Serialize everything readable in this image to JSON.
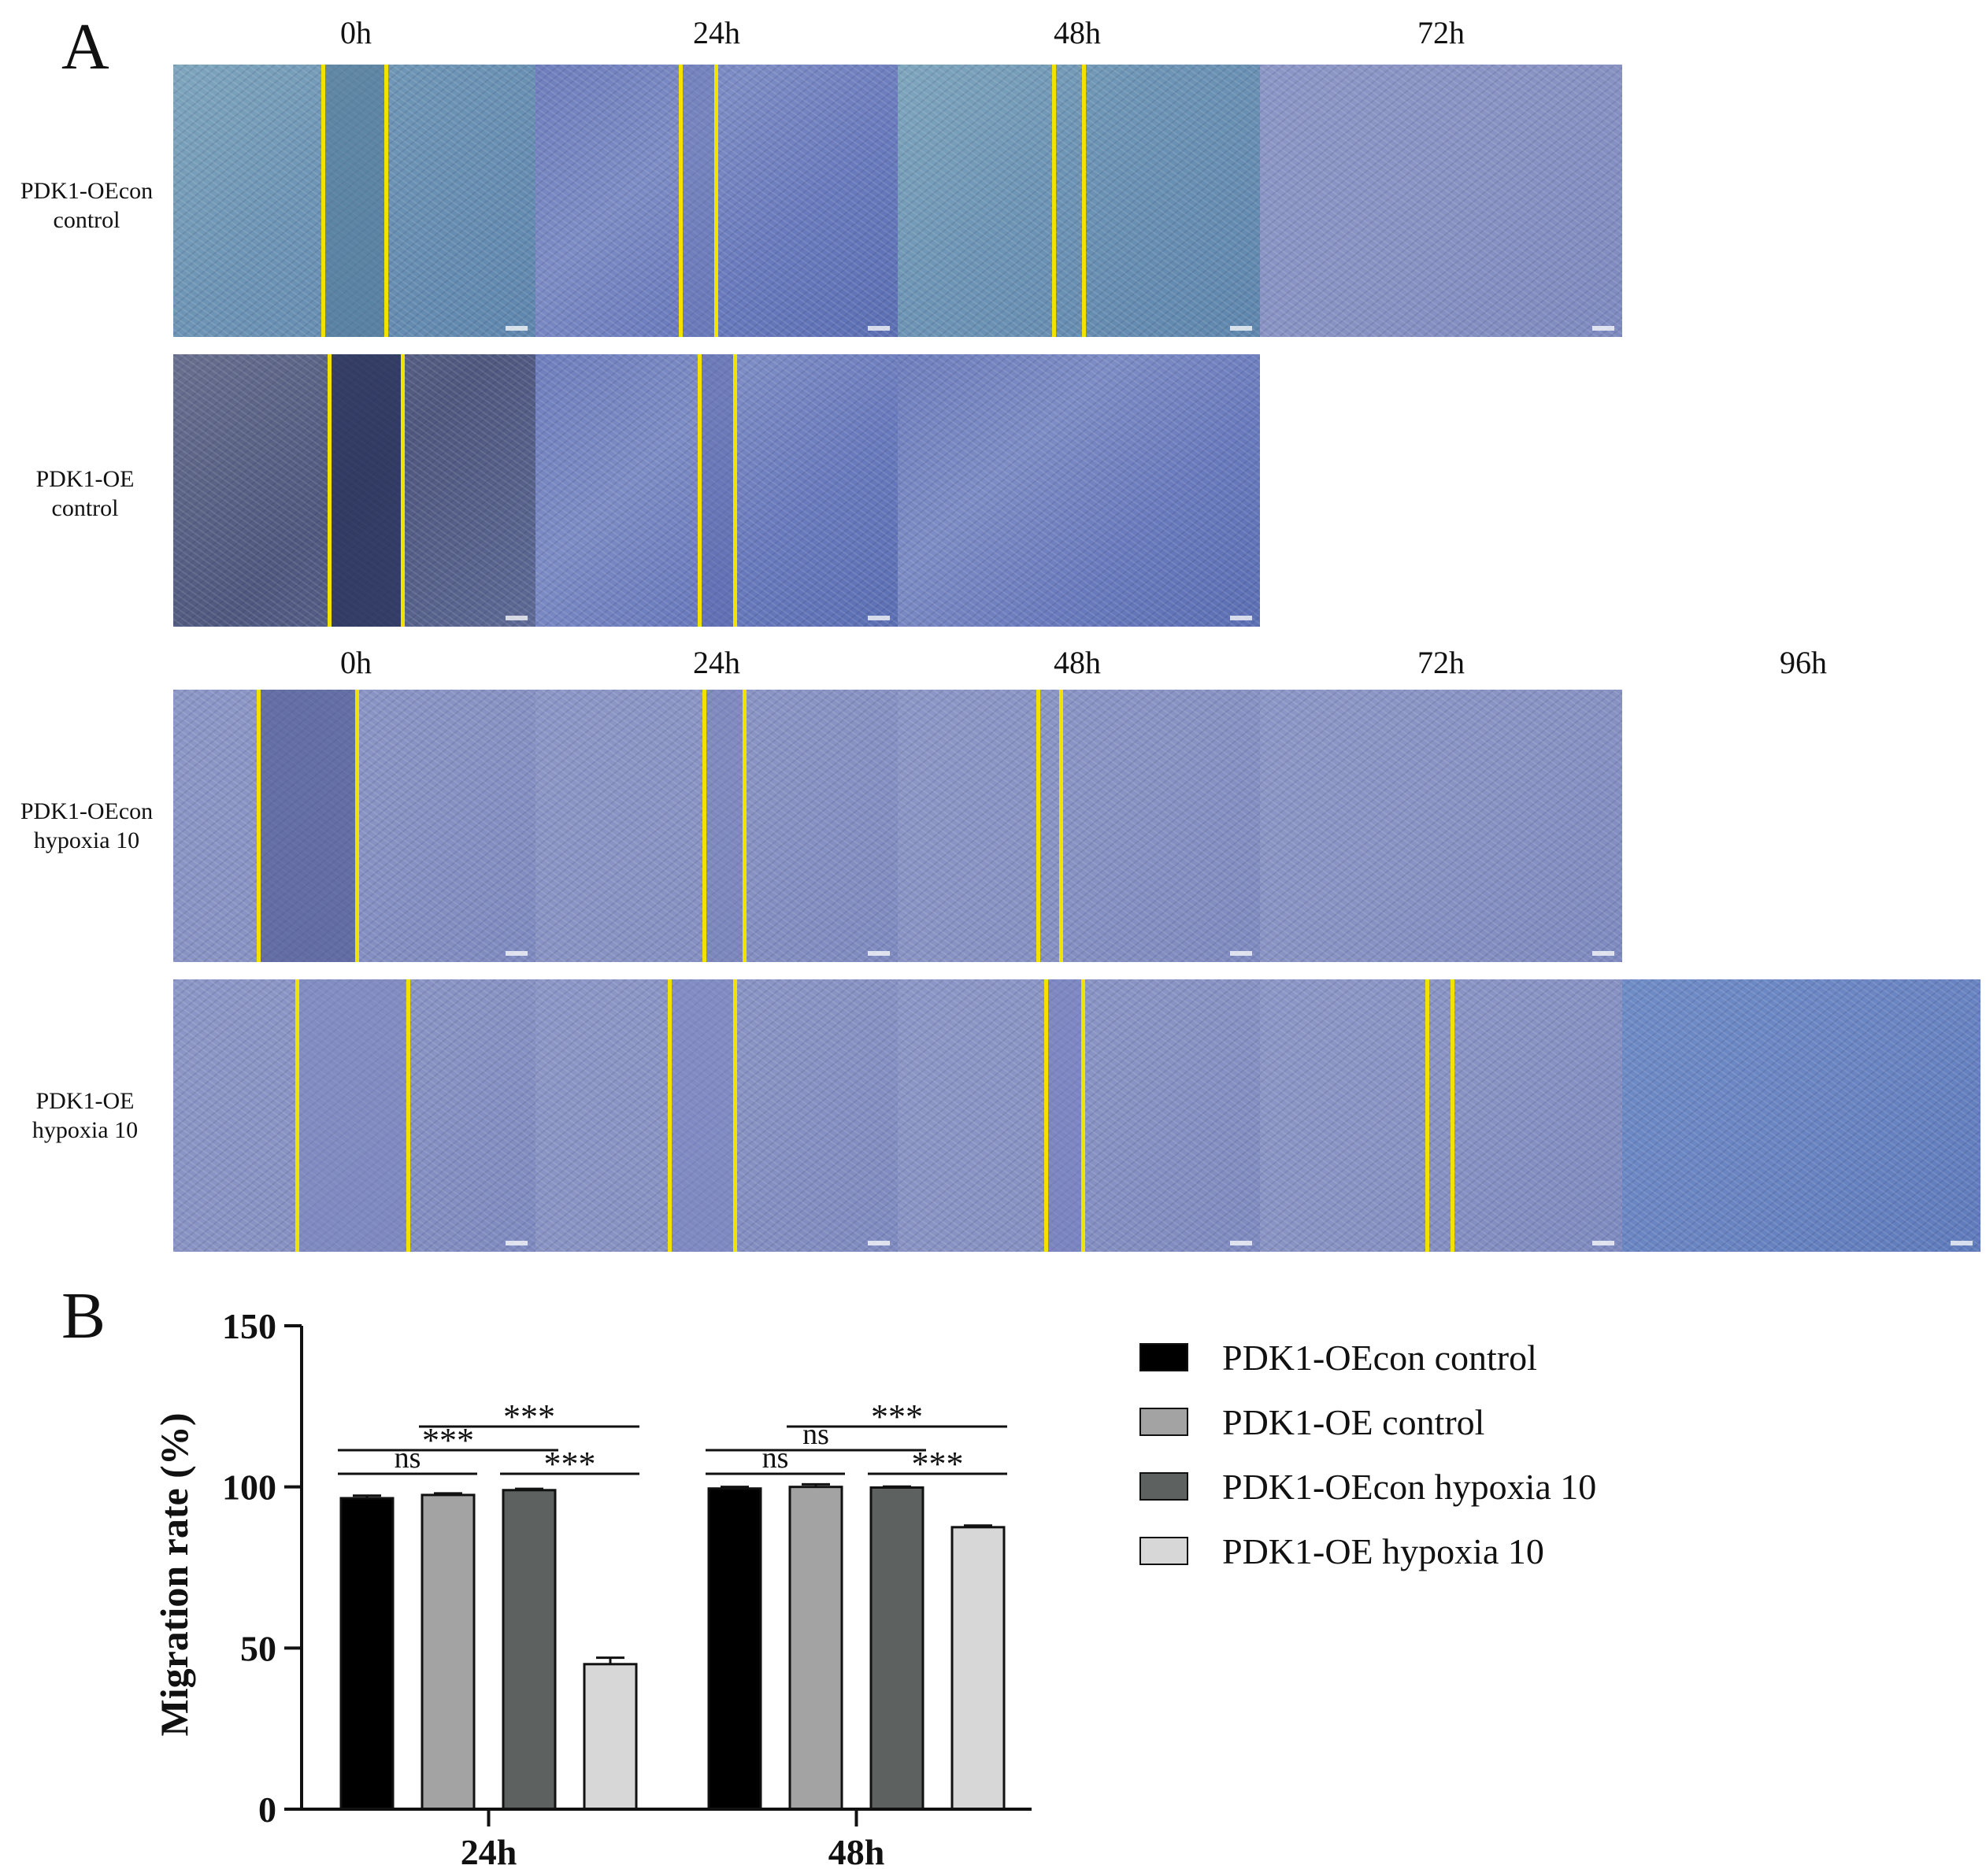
{
  "panel_a": {
    "letter": "A",
    "top_times": [
      "0h",
      "24h",
      "48h",
      "72h"
    ],
    "bottom_times": [
      "0h",
      "24h",
      "48h",
      "72h",
      "96h"
    ],
    "rows": [
      {
        "label_line1": "PDK1-OEcon",
        "label_line2": "control"
      },
      {
        "label_line1": "PDK1-OE",
        "label_line2": "control"
      },
      {
        "label_line1": "PDK1-OEcon",
        "label_line2": "hypoxia 10"
      },
      {
        "label_line1": "PDK1-OE",
        "label_line2": "hypoxia 10"
      }
    ]
  },
  "panel_b": {
    "letter": "B"
  },
  "chart_data": {
    "type": "bar",
    "categories": [
      "24h",
      "48h"
    ],
    "ylabel": "Migration rate (%)",
    "xlabel": "",
    "ylim": [
      0,
      150
    ],
    "yticks": [
      0,
      50,
      100,
      150
    ],
    "series": [
      {
        "name": "PDK1-OEcon control",
        "values": [
          96.5,
          99.5
        ],
        "errors": [
          0.8,
          0.5
        ],
        "color": "#000000"
      },
      {
        "name": "PDK1-OE control",
        "values": [
          97.5,
          100.0
        ],
        "errors": [
          0.5,
          0.8
        ],
        "color": "#a3a3a3"
      },
      {
        "name": "PDK1-OEcon hypoxia 10",
        "values": [
          99.0,
          99.8
        ],
        "errors": [
          0.4,
          0.3
        ],
        "color": "#5d615f"
      },
      {
        "name": "PDK1-OE hypoxia 10",
        "values": [
          45.0,
          87.5
        ],
        "errors": [
          2.0,
          0.5
        ],
        "color": "#d7d7d7"
      }
    ],
    "significance": [
      {
        "category": "24h",
        "from": 0,
        "to": 1,
        "label": "ns"
      },
      {
        "category": "24h",
        "from": 0,
        "to": 2,
        "label": "***"
      },
      {
        "category": "24h",
        "from": 1,
        "to": 3,
        "label": "***"
      },
      {
        "category": "24h",
        "from": 2,
        "to": 3,
        "label": "***"
      },
      {
        "category": "48h",
        "from": 0,
        "to": 1,
        "label": "ns"
      },
      {
        "category": "48h",
        "from": 0,
        "to": 2,
        "label": "ns"
      },
      {
        "category": "48h",
        "from": 1,
        "to": 3,
        "label": "***"
      },
      {
        "category": "48h",
        "from": 2,
        "to": 3,
        "label": "***"
      }
    ]
  }
}
